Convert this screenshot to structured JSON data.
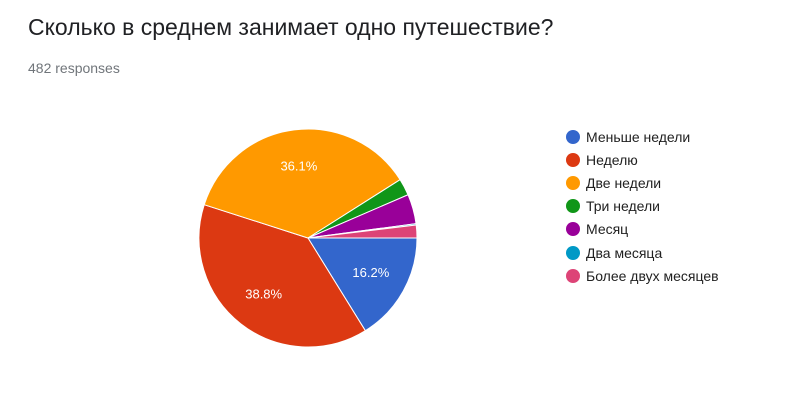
{
  "question": {
    "title": "Сколько в среднем занимает одно путешествие?",
    "response_count": "482 responses"
  },
  "chart_data": {
    "type": "pie",
    "categories": [
      "Меньше недели",
      "Неделю",
      "Две недели",
      "Три недели",
      "Месяц",
      "Два месяца",
      "Более двух месяцев"
    ],
    "values": [
      16.2,
      38.8,
      36.1,
      2.5,
      4.4,
      0.2,
      1.9
    ],
    "colors": [
      "#3366cc",
      "#dc3912",
      "#ff9900",
      "#109618",
      "#990099",
      "#0099c6",
      "#dd4477"
    ],
    "slice_labels": [
      "16.2%",
      "38.8%",
      "36.1%",
      "",
      "",
      "",
      ""
    ],
    "legend_position": "right",
    "start_angle_deg": 90,
    "direction": "clockwise"
  }
}
